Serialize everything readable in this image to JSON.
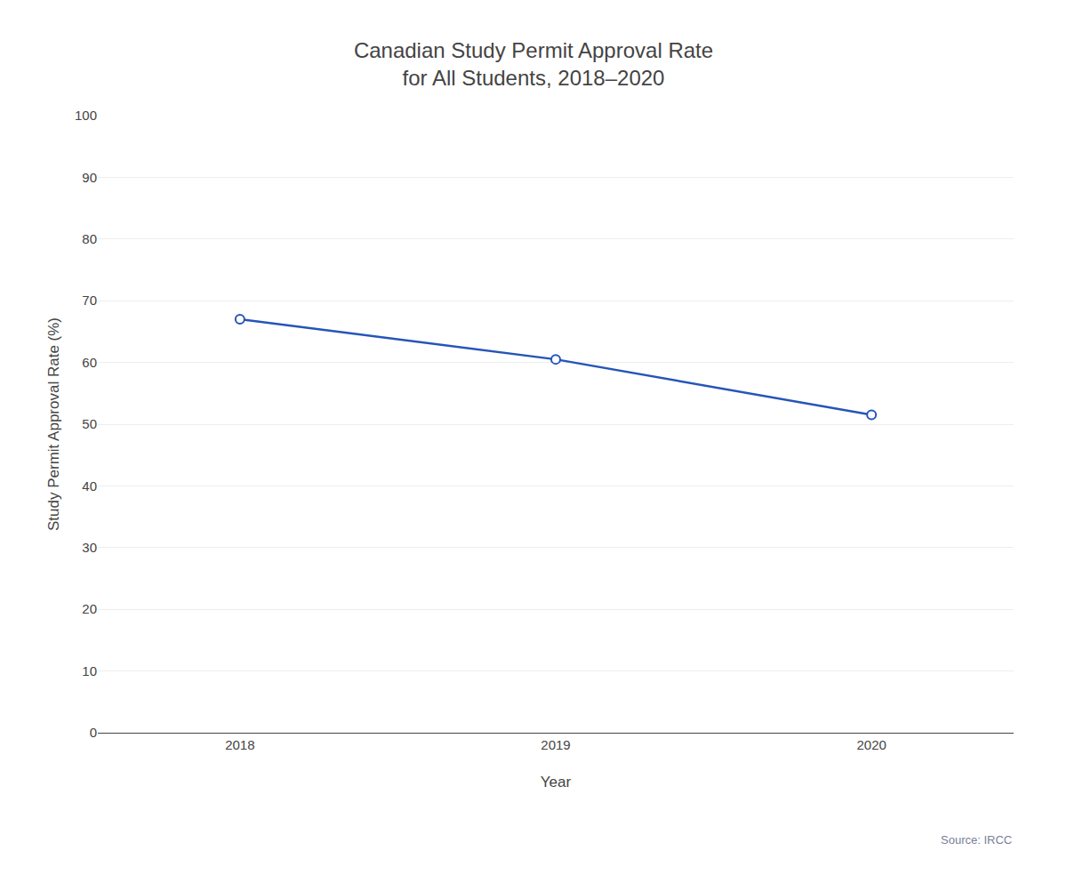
{
  "chart_data": {
    "type": "line",
    "title": "Canadian Study Permit Approval Rate\nfor All Students, 2018–2020",
    "xlabel": "Year",
    "ylabel": "Study Permit Approval Rate (%)",
    "x": [
      2018,
      2019,
      2020
    ],
    "values": [
      67,
      60.5,
      51.5
    ],
    "xlim": [
      2017.55,
      2020.45
    ],
    "xticks": [
      2018,
      2019,
      2020
    ],
    "ylim": [
      0,
      100
    ],
    "yticks": [
      0,
      10,
      20,
      30,
      40,
      50,
      60,
      70,
      80,
      90,
      100
    ],
    "color": "#2655b8",
    "marker": "circle",
    "line_style": "solid",
    "grid": true,
    "annotations": [
      "Source: IRCC"
    ]
  }
}
